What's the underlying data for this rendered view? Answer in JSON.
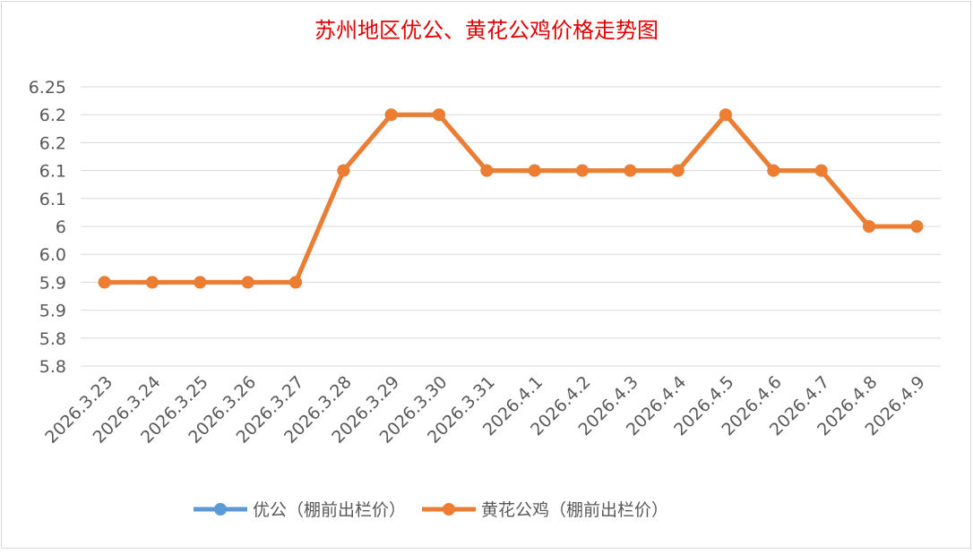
{
  "chart_data": {
    "type": "line",
    "title": "苏州地区优公、黄花公鸡价格走势图",
    "categories": [
      "2026.3.23",
      "2026.3.24",
      "2026.3.25",
      "2026.3.26",
      "2026.3.27",
      "2026.3.28",
      "2026.3.29",
      "2026.3.30",
      "2026.3.31",
      "2026.4.1",
      "2026.4.2",
      "2026.4.3",
      "2026.4.4",
      "2026.4.5",
      "2026.4.6",
      "2026.4.7",
      "2026.4.8",
      "2026.4.9"
    ],
    "series": [
      {
        "name": "优公（棚前出栏价）",
        "color": "#5b9bd5",
        "values": [
          5.9,
          5.9,
          5.9,
          5.9,
          5.9,
          6.1,
          6.2,
          6.2,
          6.1,
          6.1,
          6.1,
          6.1,
          6.1,
          6.2,
          6.1,
          6.1,
          6.0,
          6.0
        ]
      },
      {
        "name": "黄花公鸡（棚前出栏价）",
        "color": "#ed7d31",
        "values": [
          5.9,
          5.9,
          5.9,
          5.9,
          5.9,
          6.1,
          6.2,
          6.2,
          6.1,
          6.1,
          6.1,
          6.1,
          6.1,
          6.2,
          6.1,
          6.1,
          6.0,
          6.0
        ]
      }
    ],
    "ylim": [
      5.75,
      6.25
    ],
    "yticks": [
      {
        "value": 5.75,
        "label": "5.8"
      },
      5.8,
      {
        "value": 5.85,
        "label": "5.9"
      },
      5.9,
      {
        "value": 5.95,
        "label": "6.0"
      },
      6.0,
      {
        "value": 6.05,
        "label": "6.1"
      },
      6.1,
      {
        "value": 6.15,
        "label": "6.2"
      },
      6.2,
      6.25
    ],
    "grid": true,
    "legend": "bottom"
  }
}
